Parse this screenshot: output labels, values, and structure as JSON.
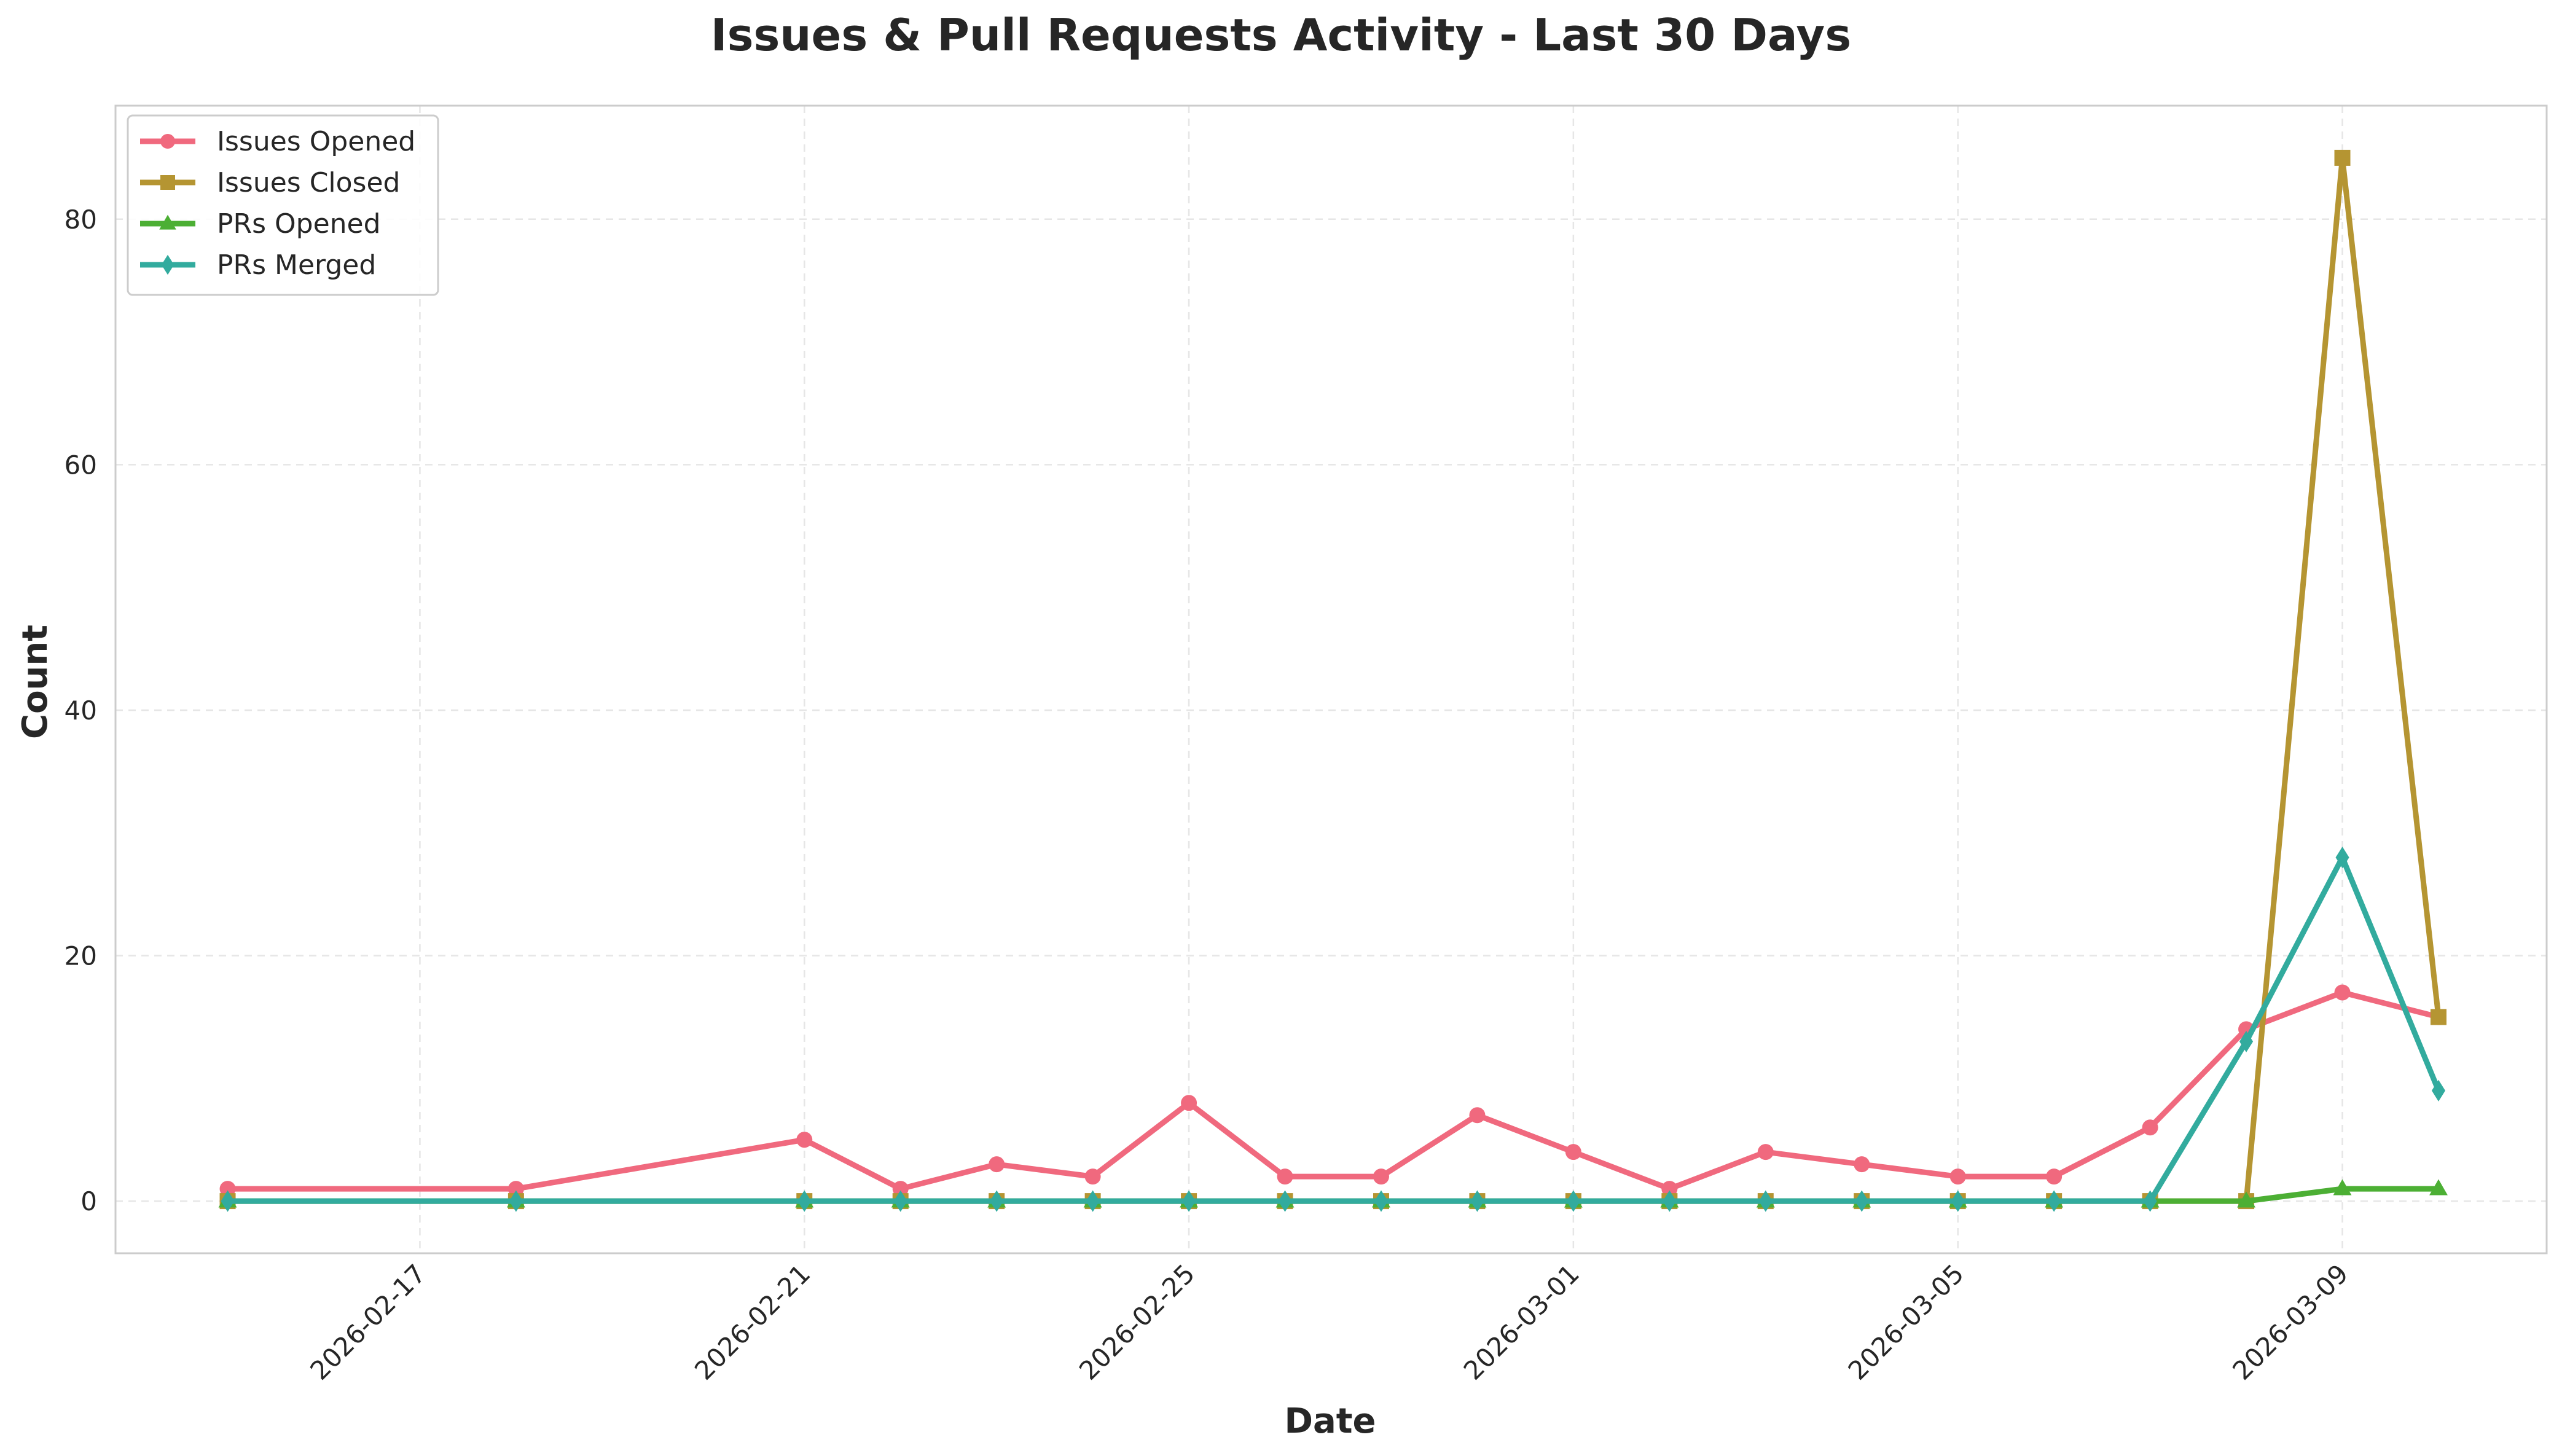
{
  "chart_data": {
    "type": "line",
    "title": "Issues & Pull Requests Activity - Last 30 Days",
    "xlabel": "Date",
    "ylabel": "Count",
    "x": [
      "2026-02-15",
      "2026-02-18",
      "2026-02-21",
      "2026-02-22",
      "2026-02-23",
      "2026-02-24",
      "2026-02-25",
      "2026-02-26",
      "2026-02-27",
      "2026-02-28",
      "2026-03-01",
      "2026-03-02",
      "2026-03-03",
      "2026-03-04",
      "2026-03-05",
      "2026-03-06",
      "2026-03-07",
      "2026-03-08",
      "2026-03-09",
      "2026-03-10"
    ],
    "x_ticks": [
      "2026-02-17",
      "2026-02-21",
      "2026-02-25",
      "2026-03-01",
      "2026-03-05",
      "2026-03-09"
    ],
    "xlim": [
      "2026-02-13T20:00",
      "2026-03-11T03:00"
    ],
    "y_ticks": [
      0,
      20,
      40,
      60,
      80
    ],
    "ylim": [
      -4.25,
      89.25
    ],
    "grid": true,
    "legend_position": "top-left",
    "series": [
      {
        "name": "Issues Opened",
        "color": "#f0697e",
        "marker": "circle",
        "values": [
          1,
          1,
          5,
          1,
          3,
          2,
          8,
          2,
          2,
          7,
          4,
          1,
          4,
          3,
          2,
          2,
          6,
          14,
          17,
          15
        ]
      },
      {
        "name": "Issues Closed",
        "color": "#b59532",
        "marker": "square",
        "values": [
          0,
          0,
          0,
          0,
          0,
          0,
          0,
          0,
          0,
          0,
          0,
          0,
          0,
          0,
          0,
          0,
          0,
          0,
          85,
          15
        ]
      },
      {
        "name": "PRs Opened",
        "color": "#4caf34",
        "marker": "triangle",
        "values": [
          0,
          0,
          0,
          0,
          0,
          0,
          0,
          0,
          0,
          0,
          0,
          0,
          0,
          0,
          0,
          0,
          0,
          0,
          1,
          1
        ]
      },
      {
        "name": "PRs Merged",
        "color": "#32ab9e",
        "marker": "diamond",
        "values": [
          0,
          0,
          0,
          0,
          0,
          0,
          0,
          0,
          0,
          0,
          0,
          0,
          0,
          0,
          0,
          0,
          0,
          13,
          28,
          9
        ]
      }
    ]
  }
}
